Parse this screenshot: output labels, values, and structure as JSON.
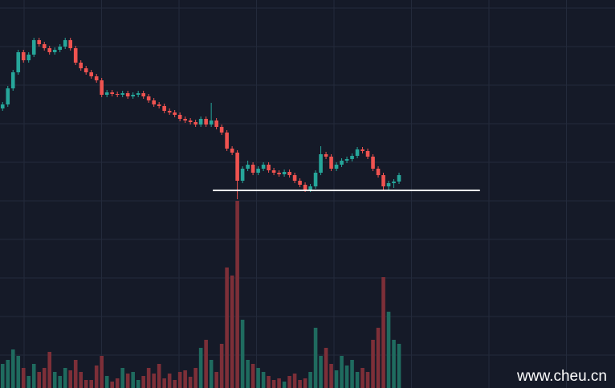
{
  "chart_data": {
    "type": "candlestick",
    "candles": [
      [
        365,
        373,
        362,
        370
      ],
      [
        370,
        393,
        367,
        390
      ],
      [
        390,
        413,
        387,
        410
      ],
      [
        410,
        438,
        407,
        435
      ],
      [
        435,
        438,
        422,
        425
      ],
      [
        425,
        435,
        422,
        432
      ],
      [
        432,
        453,
        429,
        450
      ],
      [
        450,
        453,
        442,
        445
      ],
      [
        445,
        448,
        437,
        440
      ],
      [
        440,
        443,
        432,
        435
      ],
      [
        435,
        441,
        432,
        438
      ],
      [
        438,
        445,
        435,
        442
      ],
      [
        442,
        453,
        439,
        450
      ],
      [
        450,
        453,
        437,
        440
      ],
      [
        440,
        443,
        419,
        422
      ],
      [
        422,
        425,
        412,
        415
      ],
      [
        415,
        418,
        407,
        410
      ],
      [
        410,
        413,
        402,
        405
      ],
      [
        405,
        408,
        397,
        400
      ],
      [
        400,
        403,
        379,
        382
      ],
      [
        382,
        388,
        379,
        385
      ],
      [
        385,
        388,
        380,
        383
      ],
      [
        383,
        386,
        379,
        382
      ],
      [
        382,
        387,
        379,
        384
      ],
      [
        384,
        387,
        377,
        380
      ],
      [
        380,
        385,
        377,
        382
      ],
      [
        382,
        387,
        379,
        384
      ],
      [
        384,
        387,
        377,
        380
      ],
      [
        380,
        383,
        372,
        375
      ],
      [
        375,
        378,
        367,
        370
      ],
      [
        370,
        373,
        365,
        368
      ],
      [
        368,
        371,
        359,
        362
      ],
      [
        362,
        365,
        357,
        360
      ],
      [
        360,
        363,
        354,
        357
      ],
      [
        357,
        360,
        349,
        352
      ],
      [
        352,
        355,
        347,
        350
      ],
      [
        350,
        353,
        345,
        348
      ],
      [
        348,
        351,
        342,
        345
      ],
      [
        345,
        355,
        342,
        352
      ],
      [
        352,
        355,
        342,
        345
      ],
      [
        345,
        372,
        342,
        350
      ],
      [
        350,
        353,
        339,
        342
      ],
      [
        342,
        345,
        332,
        335
      ],
      [
        335,
        338,
        312,
        315
      ],
      [
        315,
        318,
        307,
        310
      ],
      [
        310,
        313,
        252,
        275
      ],
      [
        275,
        293,
        272,
        290
      ],
      [
        290,
        300,
        287,
        295
      ],
      [
        295,
        298,
        282,
        285
      ],
      [
        285,
        293,
        282,
        290
      ],
      [
        290,
        298,
        287,
        295
      ],
      [
        295,
        298,
        285,
        288
      ],
      [
        288,
        291,
        282,
        285
      ],
      [
        285,
        288,
        280,
        283
      ],
      [
        283,
        289,
        280,
        286
      ],
      [
        286,
        289,
        279,
        282
      ],
      [
        282,
        285,
        272,
        275
      ],
      [
        275,
        278,
        267,
        270
      ],
      [
        270,
        273,
        261,
        264
      ],
      [
        264,
        271,
        261,
        268
      ],
      [
        268,
        288,
        265,
        285
      ],
      [
        285,
        318,
        282,
        308
      ],
      [
        308,
        311,
        302,
        305
      ],
      [
        305,
        308,
        287,
        290
      ],
      [
        290,
        298,
        287,
        295
      ],
      [
        295,
        303,
        292,
        300
      ],
      [
        300,
        305,
        297,
        302
      ],
      [
        302,
        309,
        299,
        306
      ],
      [
        306,
        317,
        303,
        314
      ],
      [
        314,
        317,
        309,
        312
      ],
      [
        312,
        315,
        302,
        305
      ],
      [
        305,
        308,
        287,
        290
      ],
      [
        290,
        293,
        279,
        282
      ],
      [
        282,
        285,
        262,
        268
      ],
      [
        268,
        275,
        263,
        272
      ],
      [
        272,
        277,
        266,
        274
      ],
      [
        274,
        285,
        271,
        282
      ]
    ],
    "volumes": [
      30,
      35,
      48,
      40,
      25,
      15,
      30,
      20,
      25,
      45,
      20,
      15,
      25,
      22,
      35,
      20,
      10,
      10,
      28,
      40,
      15,
      8,
      12,
      25,
      18,
      20,
      10,
      15,
      25,
      18,
      30,
      12,
      18,
      10,
      20,
      22,
      14,
      25,
      50,
      60,
      35,
      20,
      55,
      150,
      140,
      233,
      85,
      35,
      30,
      25,
      20,
      15,
      10,
      12,
      8,
      15,
      18,
      10,
      12,
      20,
      75,
      40,
      50,
      30,
      22,
      40,
      28,
      35,
      20,
      25,
      20,
      60,
      75,
      138,
      95,
      60,
      55
    ],
    "up_color": "#26a69a",
    "down_color": "#ef5350",
    "up_volume_color": "#1f6b5f",
    "down_volume_color": "#7d2f38",
    "xlim": [
      -0.5,
      117.4
    ],
    "ylim": [
      17,
      500
    ],
    "volume_lim": [
      0,
      240
    ],
    "hline": {
      "value": 263,
      "from": 40.3,
      "to": 91.5,
      "color": "#ffffff"
    },
    "grid": true
  },
  "watermark": "www.cheu.cn"
}
